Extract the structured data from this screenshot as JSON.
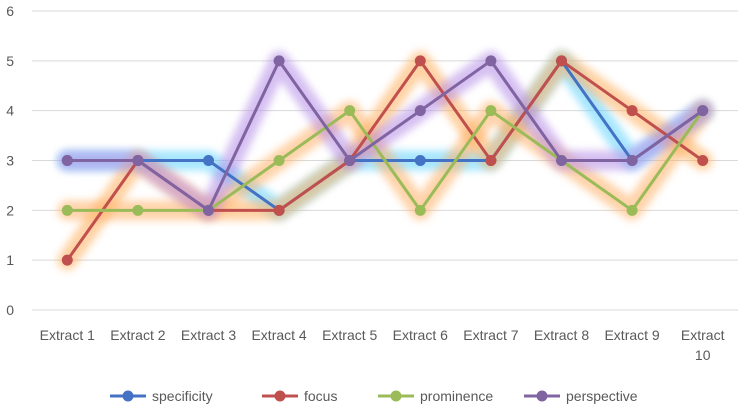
{
  "chart_data": {
    "type": "line",
    "title": "",
    "xlabel": "",
    "ylabel": "",
    "ylim": [
      0,
      6
    ],
    "yticks": [
      0,
      1,
      2,
      3,
      4,
      5,
      6
    ],
    "grid": true,
    "legend_position": "bottom",
    "categories": [
      [
        "Extract 1"
      ],
      [
        "Extract 2"
      ],
      [
        "Extract 3"
      ],
      [
        "Extract 4"
      ],
      [
        "Extract 5"
      ],
      [
        "Extract 6"
      ],
      [
        "Extract 7"
      ],
      [
        "Extract 8"
      ],
      [
        "Extract 9"
      ],
      [
        "Extract",
        "10"
      ]
    ],
    "series": [
      {
        "name": "specificity",
        "color": "#4472c4",
        "glow": "#5fd3ff",
        "values": [
          3,
          3,
          3,
          2,
          3,
          3,
          3,
          5,
          3,
          4
        ]
      },
      {
        "name": "focus",
        "color": "#c0504d",
        "glow": "#ffae5c",
        "values": [
          1,
          3,
          2,
          2,
          3,
          5,
          3,
          5,
          4,
          3
        ]
      },
      {
        "name": "prominence",
        "color": "#9bbb59",
        "glow": "#ffb066",
        "values": [
          2,
          2,
          2,
          3,
          4,
          2,
          4,
          3,
          2,
          4
        ]
      },
      {
        "name": "perspective",
        "color": "#8064a2",
        "glow": "#b48ce6",
        "values": [
          3,
          3,
          2,
          5,
          3,
          4,
          5,
          3,
          3,
          4
        ]
      }
    ]
  }
}
